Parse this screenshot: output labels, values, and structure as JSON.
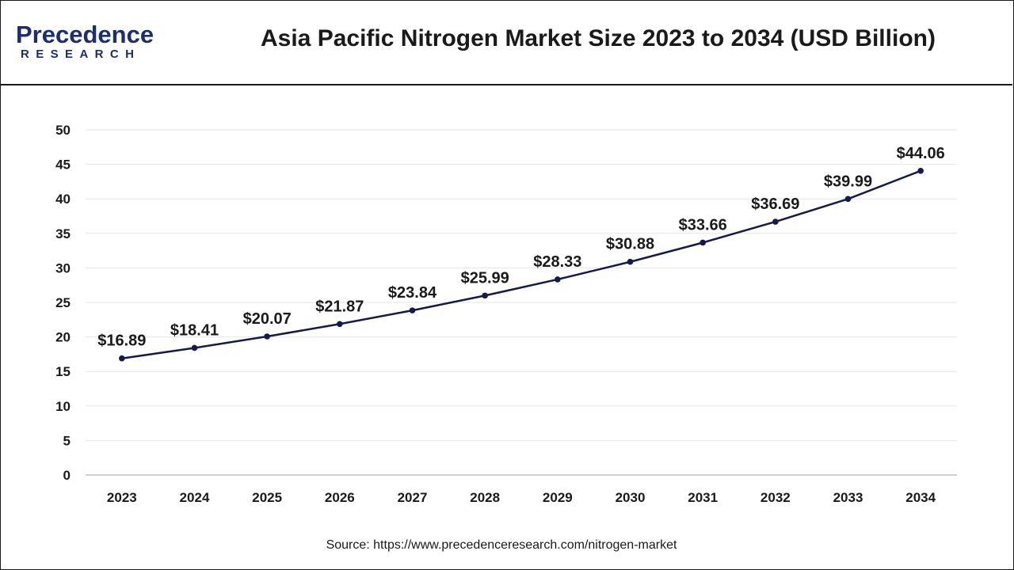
{
  "header": {
    "logo_main": "Precedence",
    "logo_sub": "RESEARCH",
    "title": "Asia Pacific Nitrogen Market Size 2023 to 2034 (USD Billion)"
  },
  "source_text": "Source: https://www.precedenceresearch.com/nitrogen-market",
  "colors": {
    "line": "#141a4a",
    "brand": "#1d2f6b",
    "brand_leaf": "#2f8fd6",
    "grid": "#e6e6e6",
    "axis": "#bfbfbf",
    "text": "#1a1a1a"
  },
  "chart_data": {
    "type": "line",
    "title": "Asia Pacific Nitrogen Market Size 2023 to 2034 (USD Billion)",
    "xlabel": "",
    "ylabel": "",
    "categories": [
      "2023",
      "2024",
      "2025",
      "2026",
      "2027",
      "2028",
      "2029",
      "2030",
      "2031",
      "2032",
      "2033",
      "2034"
    ],
    "series": [
      {
        "values": [
          16.89,
          18.41,
          20.07,
          21.87,
          23.84,
          25.99,
          28.33,
          30.88,
          33.66,
          36.69,
          39.99,
          44.06
        ],
        "labels": [
          "$16.89",
          "$18.41",
          "$20.07",
          "$21.87",
          "$23.84",
          "$25.99",
          "$28.33",
          "$30.88",
          "$33.66",
          "$36.69",
          "$39.99",
          "$44.06"
        ]
      }
    ],
    "ylim": [
      0,
      50
    ],
    "yticks": [
      0,
      5,
      10,
      15,
      20,
      25,
      30,
      35,
      40,
      45,
      50
    ],
    "grid": true,
    "legend": "none"
  }
}
